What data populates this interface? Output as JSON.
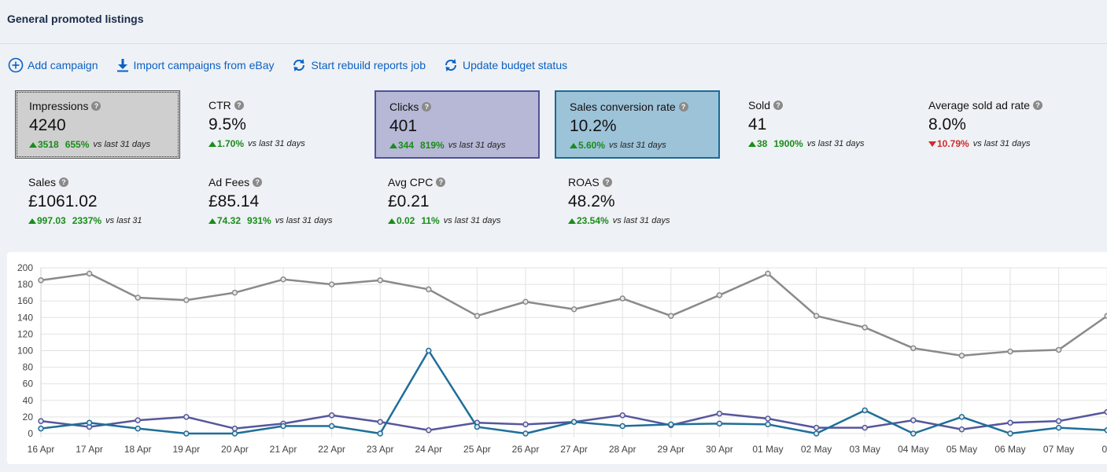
{
  "page": {
    "title": "General promoted listings"
  },
  "toolbar": {
    "add_campaign": "Add campaign",
    "import": "Import campaigns from eBay",
    "rebuild": "Start rebuild reports job",
    "update_budget": "Update budget status"
  },
  "cards": [
    {
      "label": "Impressions",
      "value": "4240",
      "delta": "3518",
      "pct": "655%",
      "direction": "up",
      "vs": "vs last 31 days"
    },
    {
      "label": "CTR",
      "value": "9.5%",
      "delta": "1.70%",
      "pct": "",
      "direction": "up",
      "vs": "vs last 31 days"
    },
    {
      "label": "Clicks",
      "value": "401",
      "delta": "344",
      "pct": "819%",
      "direction": "up",
      "vs": "vs last 31 days"
    },
    {
      "label": "Sales conversion rate",
      "value": "10.2%",
      "delta": "5.60%",
      "pct": "",
      "direction": "up",
      "vs": "vs last 31 days"
    },
    {
      "label": "Sold",
      "value": "41",
      "delta": "38",
      "pct": "1900%",
      "direction": "up",
      "vs": "vs last 31 days"
    },
    {
      "label": "Average sold ad rate",
      "value": "8.0%",
      "delta": "10.79%",
      "pct": "",
      "direction": "down",
      "vs": "vs last 31 days"
    },
    {
      "label": "Sales",
      "value": "£1061.02",
      "delta": "997.03",
      "pct": "2337%",
      "direction": "up",
      "vs": "vs last 31"
    },
    {
      "label": "Ad Fees",
      "value": "£85.14",
      "delta": "74.32",
      "pct": "931%",
      "direction": "up",
      "vs": "vs last 31 days"
    },
    {
      "label": "Avg CPC",
      "value": "£0.21",
      "delta": "0.02",
      "pct": "11%",
      "direction": "up",
      "vs": "vs last 31 days"
    },
    {
      "label": "ROAS",
      "value": "48.2%",
      "delta": "23.54%",
      "pct": "",
      "direction": "up",
      "vs": "vs last 31 days"
    }
  ],
  "colors": {
    "impressions": "#8a8a8a",
    "clicks": "#55579c",
    "conversion": "#1f6e99",
    "link": "#0a60c4",
    "up": "#1a8c1a",
    "down": "#d42a2a"
  },
  "chart_data": {
    "type": "line",
    "categories": [
      "16 Apr",
      "17 Apr",
      "18 Apr",
      "19 Apr",
      "20 Apr",
      "21 Apr",
      "22 Apr",
      "23 Apr",
      "24 Apr",
      "25 Apr",
      "26 Apr",
      "27 Apr",
      "28 Apr",
      "29 Apr",
      "30 Apr",
      "01 May",
      "02 May",
      "03 May",
      "04 May",
      "05 May",
      "06 May",
      "07 May",
      "08"
    ],
    "ylim": [
      0,
      200
    ],
    "yticks": [
      0,
      20,
      40,
      60,
      80,
      100,
      120,
      140,
      160,
      180,
      200
    ],
    "grid": true,
    "series": [
      {
        "color": "#8a8a8a",
        "values": [
          185,
          193,
          164,
          161,
          170,
          186,
          180,
          185,
          174,
          142,
          159,
          150,
          163,
          142,
          167,
          193,
          142,
          128,
          103,
          94,
          99,
          101,
          142
        ]
      },
      {
        "color": "#55579c",
        "values": [
          15,
          8,
          16,
          20,
          6,
          12,
          22,
          14,
          4,
          13,
          11,
          14,
          22,
          10,
          24,
          18,
          7,
          7,
          16,
          5,
          13,
          15,
          26
        ]
      },
      {
        "color": "#1f6e99",
        "values": [
          6,
          13,
          6,
          0,
          0,
          9,
          9,
          0,
          100,
          8,
          0,
          14,
          9,
          11,
          12,
          11,
          0,
          28,
          0,
          20,
          0,
          7,
          4
        ]
      }
    ]
  }
}
